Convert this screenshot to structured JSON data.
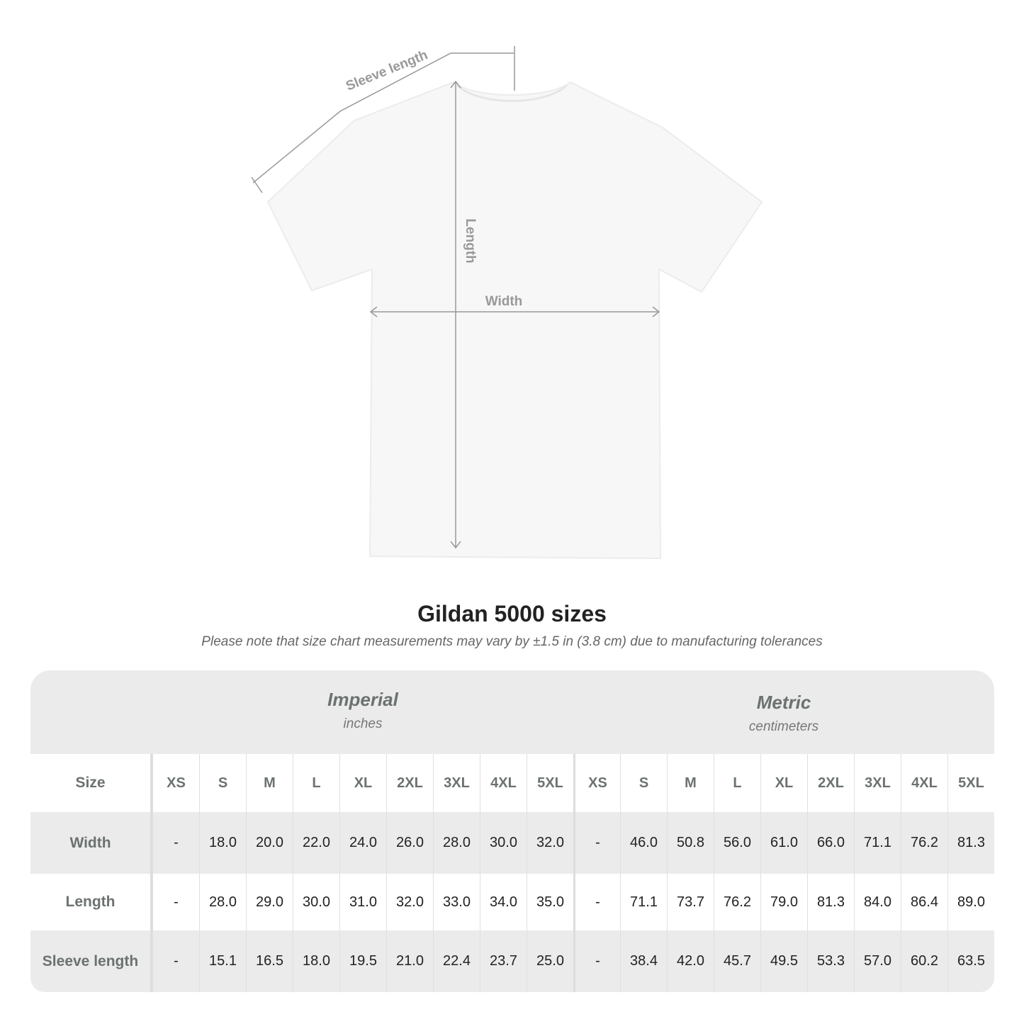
{
  "diagram": {
    "sleeve_label": "Sleeve length",
    "length_label": "Length",
    "width_label": "Width"
  },
  "title": "Gildan 5000 sizes",
  "note": "Please note that size chart measurements may vary by ±1.5 in (3.8 cm) due to manufacturing tolerances",
  "imperial": {
    "title": "Imperial",
    "unit": "inches"
  },
  "metric": {
    "title": "Metric",
    "unit": "centimeters"
  },
  "size_label": "Size",
  "sizes": [
    "XS",
    "S",
    "M",
    "L",
    "XL",
    "2XL",
    "3XL",
    "4XL",
    "5XL"
  ],
  "rows": [
    {
      "label": "Width",
      "imperial": [
        "-",
        "18.0",
        "20.0",
        "22.0",
        "24.0",
        "26.0",
        "28.0",
        "30.0",
        "32.0"
      ],
      "metric": [
        "-",
        "46.0",
        "50.8",
        "56.0",
        "61.0",
        "66.0",
        "71.1",
        "76.2",
        "81.3"
      ]
    },
    {
      "label": "Length",
      "imperial": [
        "-",
        "28.0",
        "29.0",
        "30.0",
        "31.0",
        "32.0",
        "33.0",
        "34.0",
        "35.0"
      ],
      "metric": [
        "-",
        "71.1",
        "73.7",
        "76.2",
        "79.0",
        "81.3",
        "84.0",
        "86.4",
        "89.0"
      ]
    },
    {
      "label": "Sleeve length",
      "imperial": [
        "-",
        "15.1",
        "16.5",
        "18.0",
        "19.5",
        "21.0",
        "22.4",
        "23.7",
        "25.0"
      ],
      "metric": [
        "-",
        "38.4",
        "42.0",
        "45.7",
        "49.5",
        "53.3",
        "57.0",
        "60.2",
        "63.5"
      ]
    }
  ],
  "colors": {
    "measure_line": "#999999",
    "table_gray": "#ebebeb",
    "label_gray": "#6b7270"
  }
}
